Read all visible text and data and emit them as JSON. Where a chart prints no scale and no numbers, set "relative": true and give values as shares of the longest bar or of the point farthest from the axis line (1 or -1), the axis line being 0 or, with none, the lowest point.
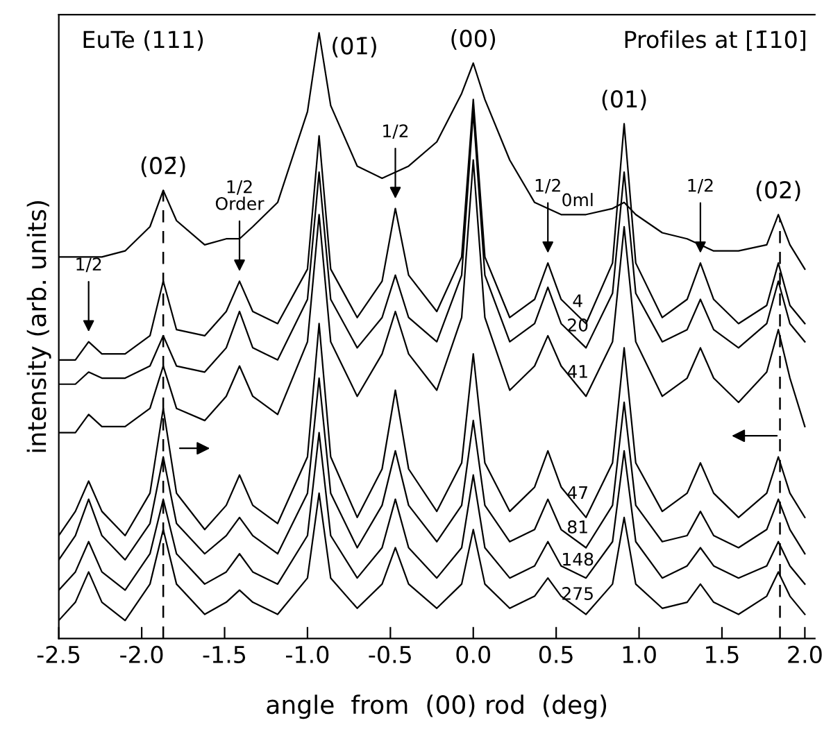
{
  "chart_data": {
    "type": "line",
    "relative": true,
    "xlabel": "angle  from  (00) rod  (deg)",
    "ylabel": "intensity (arb. units)",
    "x": [
      -2.5,
      -2.4,
      -2.32,
      -2.24,
      -2.1,
      -1.95,
      -1.87,
      -1.79,
      -1.62,
      -1.49,
      -1.41,
      -1.33,
      -1.18,
      -1.0,
      -0.93,
      -0.86,
      -0.7,
      -0.55,
      -0.47,
      -0.39,
      -0.22,
      -0.07,
      0.0,
      0.07,
      0.22,
      0.37,
      0.45,
      0.53,
      0.68,
      0.84,
      0.91,
      0.98,
      1.14,
      1.29,
      1.37,
      1.45,
      1.6,
      1.77,
      1.84,
      1.91,
      2.0
    ],
    "xlim": [
      -2.5,
      2.06
    ],
    "xticks": [
      {
        "value": -2.5,
        "label": "-2.5"
      },
      {
        "value": -2.0,
        "label": "-2.0"
      },
      {
        "value": -1.5,
        "label": "-1.5"
      },
      {
        "value": -1.0,
        "label": "-1.0"
      },
      {
        "value": -0.5,
        "label": "-0.5"
      },
      {
        "value": 0.0,
        "label": "0.0"
      },
      {
        "value": 0.5,
        "label": "0.5"
      },
      {
        "value": 1.0,
        "label": "1.0"
      },
      {
        "value": 1.5,
        "label": "1.5"
      },
      {
        "value": 2.0,
        "label": "2.0"
      }
    ],
    "tick_labels": "x",
    "grid": false,
    "legend": false,
    "line_style": "solid",
    "marker": "none",
    "series": [
      {
        "name": "0ml",
        "color": "#000000",
        "values": [
          0.63,
          0.63,
          0.63,
          0.63,
          0.64,
          0.68,
          0.74,
          0.69,
          0.65,
          0.66,
          0.66,
          0.68,
          0.72,
          0.87,
          1.0,
          0.88,
          0.78,
          0.76,
          0.77,
          0.78,
          0.82,
          0.9,
          0.95,
          0.89,
          0.79,
          0.72,
          0.71,
          0.7,
          0.7,
          0.71,
          0.72,
          0.7,
          0.67,
          0.66,
          0.65,
          0.64,
          0.64,
          0.65,
          0.7,
          0.65,
          0.61
        ]
      },
      {
        "name": "4",
        "color": "#000000",
        "values": [
          0.46,
          0.46,
          0.49,
          0.47,
          0.47,
          0.5,
          0.59,
          0.51,
          0.5,
          0.54,
          0.59,
          0.54,
          0.52,
          0.61,
          0.83,
          0.61,
          0.53,
          0.59,
          0.71,
          0.6,
          0.54,
          0.63,
          0.89,
          0.63,
          0.53,
          0.56,
          0.62,
          0.56,
          0.52,
          0.62,
          0.85,
          0.62,
          0.53,
          0.56,
          0.62,
          0.56,
          0.52,
          0.55,
          0.62,
          0.55,
          0.52
        ]
      },
      {
        "name": "20",
        "color": "#000000",
        "values": [
          0.42,
          0.42,
          0.44,
          0.43,
          0.43,
          0.45,
          0.5,
          0.45,
          0.44,
          0.48,
          0.54,
          0.48,
          0.46,
          0.56,
          0.77,
          0.56,
          0.48,
          0.53,
          0.6,
          0.53,
          0.49,
          0.6,
          0.87,
          0.6,
          0.49,
          0.52,
          0.58,
          0.52,
          0.48,
          0.57,
          0.77,
          0.57,
          0.49,
          0.51,
          0.56,
          0.51,
          0.48,
          0.52,
          0.59,
          0.52,
          0.49
        ]
      },
      {
        "name": "41",
        "color": "#000000",
        "values": [
          0.34,
          0.34,
          0.37,
          0.35,
          0.35,
          0.38,
          0.45,
          0.38,
          0.36,
          0.4,
          0.45,
          0.4,
          0.37,
          0.49,
          0.7,
          0.49,
          0.4,
          0.47,
          0.54,
          0.47,
          0.41,
          0.53,
          0.79,
          0.53,
          0.41,
          0.45,
          0.5,
          0.45,
          0.4,
          0.49,
          0.68,
          0.49,
          0.4,
          0.43,
          0.48,
          0.43,
          0.39,
          0.44,
          0.51,
          0.43,
          0.35
        ]
      },
      {
        "name": "47",
        "color": "#000000",
        "values": [
          0.17,
          0.21,
          0.26,
          0.21,
          0.17,
          0.24,
          0.38,
          0.24,
          0.18,
          0.22,
          0.27,
          0.22,
          0.19,
          0.3,
          0.52,
          0.3,
          0.2,
          0.28,
          0.41,
          0.28,
          0.21,
          0.29,
          0.47,
          0.29,
          0.21,
          0.25,
          0.31,
          0.25,
          0.2,
          0.29,
          0.48,
          0.29,
          0.21,
          0.24,
          0.29,
          0.24,
          0.2,
          0.24,
          0.3,
          0.24,
          0.2
        ]
      },
      {
        "name": "81",
        "color": "#000000",
        "values": [
          0.13,
          0.17,
          0.23,
          0.17,
          0.13,
          0.19,
          0.3,
          0.19,
          0.14,
          0.17,
          0.2,
          0.17,
          0.14,
          0.24,
          0.43,
          0.24,
          0.15,
          0.22,
          0.31,
          0.22,
          0.16,
          0.22,
          0.36,
          0.22,
          0.16,
          0.18,
          0.23,
          0.18,
          0.15,
          0.22,
          0.39,
          0.22,
          0.16,
          0.17,
          0.21,
          0.17,
          0.15,
          0.18,
          0.23,
          0.18,
          0.14
        ]
      },
      {
        "name": "148",
        "color": "#000000",
        "values": [
          0.08,
          0.11,
          0.16,
          0.11,
          0.08,
          0.14,
          0.23,
          0.14,
          0.09,
          0.11,
          0.14,
          0.11,
          0.09,
          0.17,
          0.34,
          0.17,
          0.1,
          0.15,
          0.23,
          0.15,
          0.1,
          0.15,
          0.27,
          0.15,
          0.1,
          0.12,
          0.16,
          0.12,
          0.1,
          0.16,
          0.31,
          0.16,
          0.1,
          0.12,
          0.15,
          0.12,
          0.1,
          0.12,
          0.16,
          0.12,
          0.09
        ]
      },
      {
        "name": "275",
        "color": "#000000",
        "values": [
          0.03,
          0.06,
          0.11,
          0.06,
          0.03,
          0.09,
          0.18,
          0.09,
          0.04,
          0.06,
          0.08,
          0.06,
          0.04,
          0.1,
          0.24,
          0.1,
          0.05,
          0.09,
          0.15,
          0.09,
          0.05,
          0.09,
          0.18,
          0.09,
          0.05,
          0.07,
          0.1,
          0.07,
          0.04,
          0.09,
          0.2,
          0.09,
          0.05,
          0.06,
          0.09,
          0.06,
          0.04,
          0.07,
          0.11,
          0.07,
          0.04
        ]
      }
    ],
    "ref_lines": [
      {
        "axis": "x",
        "value": -1.87,
        "line_style": "dashed",
        "color": "#000000"
      },
      {
        "axis": "x",
        "value": 1.85,
        "line_style": "dashed",
        "color": "#000000"
      }
    ],
    "annotations": [
      "EuTe (111)",
      "Profiles at [1̄10]",
      {
        "text": "(02̄)",
        "x": -1.87,
        "y": 0.74
      },
      {
        "text": "(01̄)",
        "x": -0.93,
        "y": 1.0
      },
      {
        "text": "(00)",
        "x": 0.0,
        "y": 0.95
      },
      {
        "text": "(01)",
        "x": 0.91,
        "y": 0.85
      },
      {
        "text": "(02)",
        "x": 1.84,
        "y": 0.7
      },
      {
        "text": "1/2",
        "x": -2.32,
        "y": 0.49
      },
      {
        "text": "1/2\nOrder",
        "x": -1.41,
        "y": 0.59
      },
      {
        "text": "1/2",
        "x": -0.47,
        "y": 0.71
      },
      {
        "text": "1/2",
        "x": 0.45,
        "y": 0.62
      },
      {
        "text": "1/2",
        "x": 1.37,
        "y": 0.62
      }
    ]
  }
}
